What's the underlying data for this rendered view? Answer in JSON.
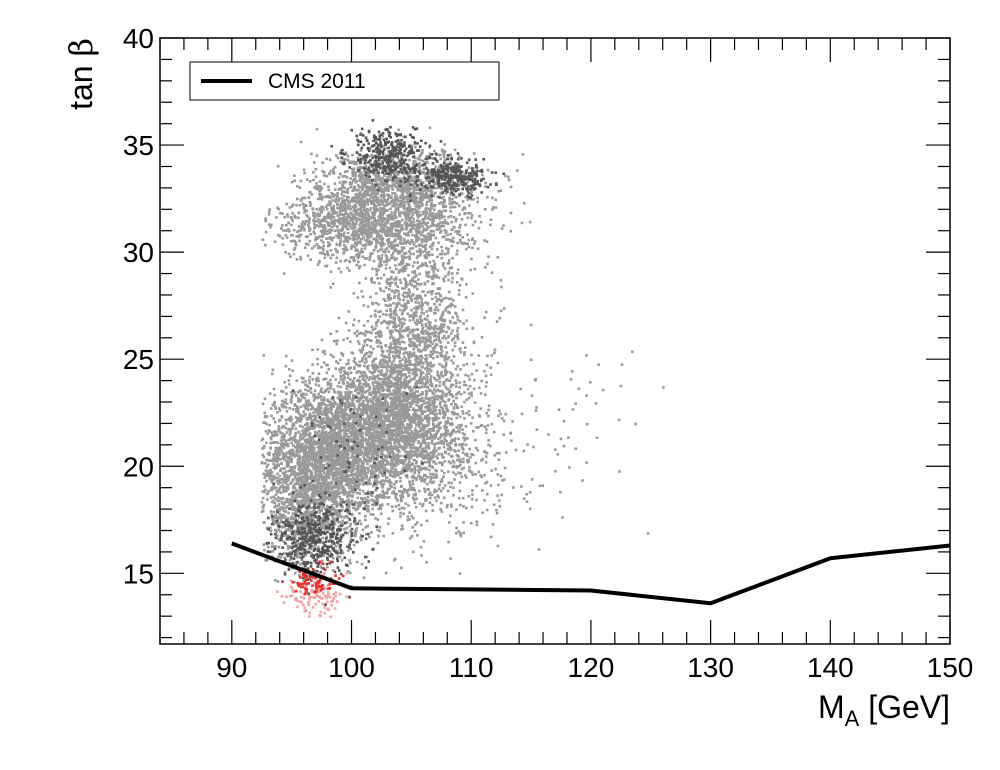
{
  "chart_data": {
    "type": "scatter",
    "title": "",
    "xlabel": "M_A [GeV]",
    "xlabel_main": "M",
    "xlabel_sub": "A",
    "xlabel_rest": " [GeV]",
    "ylabel": "tan β",
    "ylabel_main": "tan ",
    "ylabel_greek": "β",
    "xlim": [
      84,
      150
    ],
    "ylim": [
      11.7,
      40
    ],
    "xticks": [
      90,
      100,
      110,
      120,
      130,
      140,
      150
    ],
    "yticks": [
      15,
      20,
      25,
      30,
      35,
      40
    ],
    "xtick_labels": [
      "90",
      "100",
      "110",
      "120",
      "130",
      "140",
      "150"
    ],
    "ytick_labels": [
      "15",
      "20",
      "25",
      "30",
      "35",
      "40"
    ],
    "grid": false,
    "legend": {
      "position": "top-left",
      "entries": [
        "CMS 2011"
      ]
    },
    "colors": {
      "light_points": "#999999",
      "dark_points": "#555555",
      "red_points": "#e83030",
      "pink_points": "#f4a3a3",
      "limit_line": "#000000"
    },
    "series": [
      {
        "name": "CMS 2011",
        "kind": "line",
        "x": [
          90,
          100,
          110,
          120,
          130,
          140,
          150
        ],
        "y": [
          16.4,
          14.3,
          14.25,
          14.2,
          13.6,
          15.7,
          16.3
        ]
      }
    ],
    "scatter_regions": [
      {
        "shade": "light",
        "cx": 97.5,
        "cy": 20.2,
        "sx": 2.6,
        "sy": 1.8,
        "n": 2600
      },
      {
        "shade": "light",
        "cx": 103.0,
        "cy": 21.5,
        "sx": 3.2,
        "sy": 1.7,
        "n": 2400
      },
      {
        "shade": "light",
        "cx": 104.0,
        "cy": 24.0,
        "sx": 2.6,
        "sy": 1.6,
        "n": 900
      },
      {
        "shade": "light",
        "cx": 105.5,
        "cy": 27.5,
        "sx": 2.2,
        "sy": 1.7,
        "n": 700
      },
      {
        "shade": "light",
        "cx": 102.0,
        "cy": 31.3,
        "sx": 4.0,
        "sy": 0.9,
        "n": 1500
      },
      {
        "shade": "light",
        "cx": 104.0,
        "cy": 33.2,
        "sx": 3.2,
        "sy": 0.8,
        "n": 1100
      },
      {
        "shade": "light",
        "cx": 96.0,
        "cy": 17.2,
        "sx": 1.5,
        "sy": 1.1,
        "n": 500
      },
      {
        "shade": "light",
        "cx": 109.0,
        "cy": 20.5,
        "sx": 3.5,
        "sy": 2.2,
        "n": 300
      },
      {
        "shade": "light",
        "cx": 118.0,
        "cy": 23.0,
        "sx": 5.0,
        "sy": 2.2,
        "n": 45
      },
      {
        "shade": "dark",
        "cx": 97.0,
        "cy": 16.6,
        "sx": 1.8,
        "sy": 0.9,
        "n": 420
      },
      {
        "shade": "dark",
        "cx": 103.0,
        "cy": 34.5,
        "sx": 1.6,
        "sy": 0.6,
        "n": 320
      },
      {
        "shade": "dark",
        "cx": 108.5,
        "cy": 33.5,
        "sx": 1.4,
        "sy": 0.4,
        "n": 280
      },
      {
        "shade": "dark",
        "cx": 100.0,
        "cy": 20.5,
        "sx": 2.5,
        "sy": 1.8,
        "n": 70
      },
      {
        "shade": "red",
        "cx": 96.8,
        "cy": 14.6,
        "sx": 0.9,
        "sy": 0.35,
        "n": 70
      },
      {
        "shade": "pink",
        "cx": 97.0,
        "cy": 14.0,
        "sx": 1.2,
        "sy": 0.45,
        "n": 110
      }
    ]
  }
}
